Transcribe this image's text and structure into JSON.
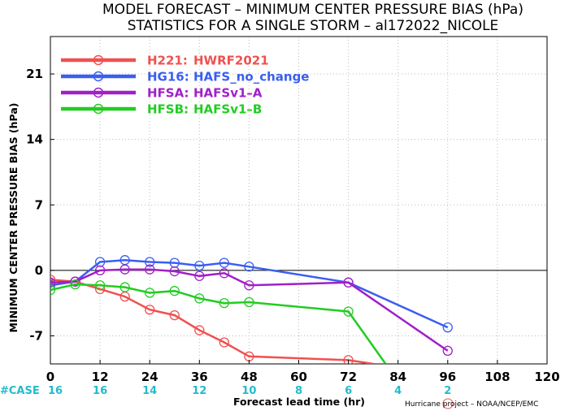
{
  "chart_data": {
    "type": "line",
    "title_line1": "MODEL FORECAST – MINIMUM CENTER PRESSURE BIAS (hPa)",
    "title_line2": "STATISTICS FOR A SINGLE STORM – al172022_NICOLE",
    "xlabel": "Forecast lead time (hr)",
    "ylabel": "MINIMUM CENTER PRESSURE BIAS (hPa)",
    "xlim": [
      0,
      120
    ],
    "ylim": [
      -10,
      25
    ],
    "xticks": [
      0,
      12,
      24,
      36,
      48,
      60,
      72,
      84,
      96,
      108,
      120
    ],
    "yticks": [
      -7,
      0,
      7,
      14,
      21
    ],
    "grid": true,
    "legend_position": "top-left",
    "case_label": "#CASE",
    "case_x": [
      0,
      12,
      24,
      36,
      48,
      60,
      72,
      84,
      96
    ],
    "case_counts": [
      "16",
      "16",
      "14",
      "12",
      "10",
      "8",
      "6",
      "4",
      "2"
    ],
    "credit": "Hurricane project – NOAA/NCEP/EMC",
    "series": [
      {
        "code": "H221:",
        "name": "HWRF2021",
        "color": "#f05050",
        "x": [
          0,
          6,
          12,
          18,
          24,
          30,
          36,
          42,
          48,
          72,
          78
        ],
        "y": [
          -1.0,
          -1.2,
          -2.0,
          -2.8,
          -4.2,
          -4.8,
          -6.4,
          -7.7,
          -9.2,
          -9.6,
          -10.0
        ]
      },
      {
        "code": "HG16:",
        "name": "HAFS_no_change",
        "color": "#3a5ef0",
        "x": [
          0,
          6,
          12,
          18,
          24,
          30,
          36,
          42,
          48,
          72,
          96
        ],
        "y": [
          -1.6,
          -1.2,
          0.9,
          1.1,
          0.9,
          0.8,
          0.5,
          0.8,
          0.4,
          -1.3,
          -6.1
        ]
      },
      {
        "code": "HFSA:",
        "name": "HAFSv1–A",
        "color": "#a020c8",
        "x": [
          0,
          6,
          12,
          18,
          24,
          30,
          36,
          42,
          48,
          72,
          96
        ],
        "y": [
          -1.3,
          -1.2,
          0.0,
          0.1,
          0.1,
          -0.1,
          -0.6,
          -0.3,
          -1.6,
          -1.3,
          -8.6
        ]
      },
      {
        "code": "HFSB:",
        "name": "HAFSv1–B",
        "color": "#22cc22",
        "x": [
          0,
          6,
          12,
          18,
          24,
          30,
          36,
          42,
          48,
          72,
          81
        ],
        "y": [
          -2.1,
          -1.5,
          -1.6,
          -1.8,
          -2.4,
          -2.2,
          -3.0,
          -3.5,
          -3.4,
          -4.4,
          -10.0
        ]
      }
    ]
  }
}
